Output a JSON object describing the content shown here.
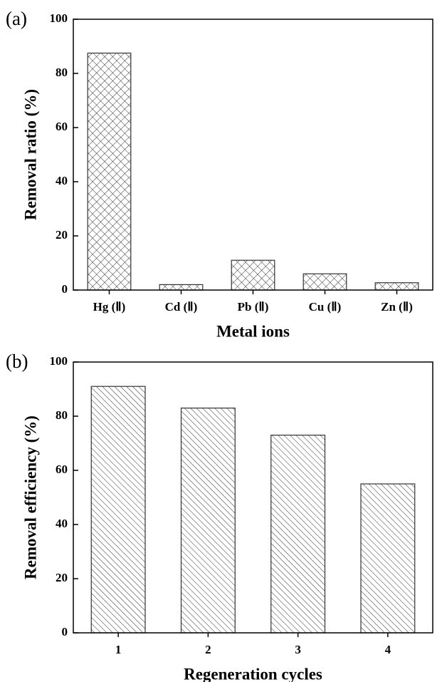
{
  "chart_data": [
    {
      "type": "bar",
      "panel_label": "(a)",
      "xlabel": "Metal ions",
      "ylabel": "Removal ratio (%)",
      "categories": [
        "Hg (Ⅱ)",
        "Cd (Ⅱ)",
        "Pb (Ⅱ)",
        "Cu (Ⅱ)",
        "Zn (Ⅱ)"
      ],
      "values": [
        87.5,
        2,
        11,
        6,
        2.7
      ],
      "color": "#333333",
      "hatch": "crosshatch",
      "ylim": [
        0,
        100
      ],
      "yticks": [
        0,
        20,
        40,
        60,
        80,
        100
      ]
    },
    {
      "type": "bar",
      "panel_label": "(b)",
      "xlabel": "Regeneration cycles",
      "ylabel": "Removal efficiency (%)",
      "categories": [
        "1",
        "2",
        "3",
        "4"
      ],
      "values": [
        91,
        83,
        73,
        55
      ],
      "color": "#333333",
      "hatch": "diagonal",
      "ylim": [
        0,
        100
      ],
      "yticks": [
        0,
        20,
        40,
        60,
        80,
        100
      ]
    }
  ]
}
